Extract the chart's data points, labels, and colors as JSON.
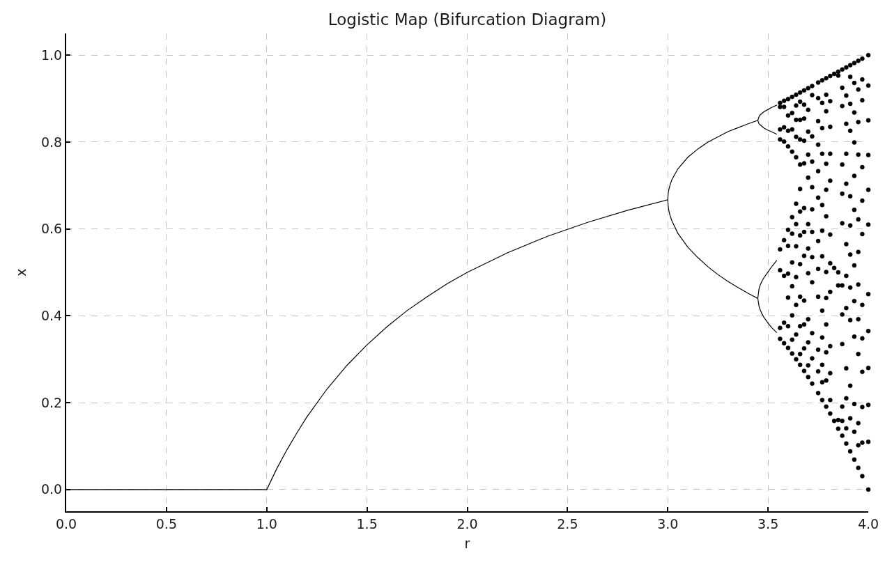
{
  "chart_data": {
    "type": "scatter",
    "title": "Logistic Map (Bifurcation Diagram)",
    "xlabel": "r",
    "ylabel": "x",
    "xlim": [
      0,
      4
    ],
    "ylim": [
      -0.05,
      1.05
    ],
    "xticks": [
      {
        "value": 0,
        "label": "0.0"
      },
      0.5,
      {
        "value": 1,
        "label": "1.0"
      },
      1.5,
      {
        "value": 2,
        "label": "2.0"
      },
      2.5,
      {
        "value": 3,
        "label": "3.0"
      },
      3.5,
      {
        "value": 4,
        "label": "4.0"
      }
    ],
    "yticks": [
      {
        "value": 0,
        "label": "0.0"
      },
      0.2,
      0.4,
      0.6,
      0.8,
      {
        "value": 1,
        "label": "1.0"
      }
    ],
    "grid": true,
    "marker": "circle",
    "line_style": "solid",
    "series": [
      {
        "type": "line",
        "marker": "none",
        "color": "#000000",
        "x": [
          0,
          0.5,
          1.0,
          1.05,
          1.1,
          1.15,
          1.2,
          1.3,
          1.4,
          1.5,
          1.6,
          1.7,
          1.8,
          1.9,
          2.0,
          2.2,
          2.4,
          2.6,
          2.8,
          3.0,
          3.002,
          3.005,
          3.01,
          3.02,
          3.05,
          3.1,
          3.15,
          3.2,
          3.25,
          3.3,
          3.35,
          3.4,
          3.449,
          3.455,
          3.46,
          3.47,
          3.48,
          3.5,
          3.52,
          3.544
        ],
        "values": [
          0,
          0,
          0,
          0.048,
          0.091,
          0.13,
          0.167,
          0.231,
          0.286,
          0.333,
          0.375,
          0.412,
          0.444,
          0.474,
          0.5,
          0.545,
          0.583,
          0.615,
          0.643,
          0.667,
          0.682,
          0.69,
          0.699,
          0.713,
          0.738,
          0.765,
          0.784,
          0.8,
          0.812,
          0.824,
          0.833,
          0.842,
          0.85,
          0.858,
          0.862,
          0.866,
          0.87,
          0.875,
          0.88,
          0.885
        ]
      },
      {
        "type": "line",
        "marker": "none",
        "color": "#000000",
        "x": [
          3.0,
          3.002,
          3.005,
          3.01,
          3.02,
          3.05,
          3.1,
          3.15,
          3.2,
          3.25,
          3.3,
          3.35,
          3.4,
          3.449,
          3.455,
          3.46,
          3.47,
          3.48,
          3.5,
          3.52,
          3.544
        ],
        "values": [
          0.667,
          0.652,
          0.643,
          0.633,
          0.619,
          0.59,
          0.558,
          0.534,
          0.513,
          0.495,
          0.479,
          0.465,
          0.452,
          0.44,
          0.422,
          0.415,
          0.404,
          0.396,
          0.383,
          0.372,
          0.361
        ]
      },
      {
        "type": "line",
        "marker": "none",
        "color": "#000000",
        "x": [
          3.449,
          3.455,
          3.46,
          3.47,
          3.48,
          3.5,
          3.52,
          3.544
        ],
        "values": [
          0.85,
          0.842,
          0.84,
          0.836,
          0.832,
          0.827,
          0.823,
          0.818
        ]
      },
      {
        "type": "line",
        "marker": "none",
        "color": "#000000",
        "x": [
          3.449,
          3.455,
          3.46,
          3.47,
          3.48,
          3.5,
          3.52,
          3.544
        ],
        "values": [
          0.44,
          0.462,
          0.47,
          0.48,
          0.488,
          0.501,
          0.514,
          0.528
        ]
      },
      {
        "color": "#000000",
        "x": [
          3.56,
          3.56,
          3.56,
          3.56,
          3.56,
          3.56,
          3.56,
          3.56,
          3.58,
          3.58,
          3.58,
          3.58,
          3.58,
          3.58,
          3.58,
          3.58,
          3.6,
          3.6,
          3.6,
          3.6,
          3.6,
          3.6,
          3.6,
          3.6,
          3.6,
          3.6,
          3.62,
          3.62,
          3.62,
          3.62,
          3.62,
          3.62,
          3.62,
          3.62,
          3.62,
          3.62,
          3.62,
          3.64,
          3.64,
          3.64,
          3.64,
          3.64,
          3.64,
          3.64,
          3.64,
          3.64,
          3.64,
          3.64,
          3.64,
          3.66,
          3.66,
          3.66,
          3.66,
          3.66,
          3.66,
          3.66,
          3.66,
          3.66,
          3.66,
          3.66,
          3.66,
          3.66
        ],
        "values": [
          0.89,
          0.881,
          0.829,
          0.806,
          0.553,
          0.505,
          0.372,
          0.347,
          0.895,
          0.881,
          0.834,
          0.801,
          0.574,
          0.492,
          0.384,
          0.337,
          0.899,
          0.861,
          0.826,
          0.79,
          0.598,
          0.561,
          0.497,
          0.442,
          0.376,
          0.326,
          0.904,
          0.867,
          0.829,
          0.778,
          0.627,
          0.589,
          0.523,
          0.468,
          0.401,
          0.345,
          0.313,
          0.909,
          0.884,
          0.851,
          0.812,
          0.765,
          0.658,
          0.611,
          0.56,
          0.489,
          0.425,
          0.357,
          0.3,
          0.914,
          0.893,
          0.851,
          0.806,
          0.748,
          0.692,
          0.64,
          0.585,
          0.519,
          0.444,
          0.376,
          0.312,
          0.287
        ]
      },
      {
        "color": "#000000",
        "x": [
          3.68,
          3.68,
          3.68,
          3.68,
          3.68,
          3.68,
          3.68,
          3.68,
          3.68,
          3.68,
          3.68,
          3.68,
          3.7,
          3.7,
          3.7,
          3.7,
          3.7,
          3.7,
          3.7,
          3.7,
          3.7,
          3.7,
          3.7,
          3.7,
          3.72,
          3.72,
          3.72,
          3.72,
          3.72,
          3.72,
          3.72,
          3.72,
          3.72,
          3.72,
          3.72,
          3.72,
          3.75,
          3.75,
          3.75,
          3.75,
          3.75,
          3.75,
          3.75,
          3.75,
          3.75,
          3.75,
          3.75,
          3.75,
          3.77,
          3.77,
          3.77,
          3.77,
          3.77,
          3.77,
          3.77,
          3.77,
          3.77,
          3.77,
          3.77,
          3.77,
          3.79,
          3.79,
          3.79,
          3.79,
          3.79,
          3.79,
          3.79,
          3.79,
          3.79,
          3.79,
          3.79,
          3.79,
          3.81,
          3.81,
          3.81,
          3.81,
          3.81,
          3.81,
          3.81,
          3.81,
          3.81,
          3.81,
          3.81,
          3.81
        ],
        "values": [
          0.919,
          0.886,
          0.854,
          0.803,
          0.751,
          0.648,
          0.593,
          0.538,
          0.435,
          0.38,
          0.325,
          0.273,
          0.924,
          0.874,
          0.824,
          0.771,
          0.718,
          0.611,
          0.555,
          0.498,
          0.392,
          0.339,
          0.286,
          0.259,
          0.929,
          0.908,
          0.813,
          0.755,
          0.696,
          0.645,
          0.593,
          0.535,
          0.477,
          0.36,
          0.302,
          0.244,
          0.937,
          0.901,
          0.848,
          0.794,
          0.733,
          0.672,
          0.572,
          0.508,
          0.444,
          0.322,
          0.272,
          0.222,
          0.942,
          0.89,
          0.832,
          0.773,
          0.655,
          0.596,
          0.537,
          0.412,
          0.35,
          0.287,
          0.247,
          0.206,
          0.947,
          0.909,
          0.871,
          0.75,
          0.69,
          0.629,
          0.501,
          0.441,
          0.38,
          0.316,
          0.251,
          0.191,
          0.952,
          0.894,
          0.835,
          0.773,
          0.711,
          0.587,
          0.521,
          0.455,
          0.33,
          0.268,
          0.206,
          0.175
        ]
      },
      {
        "color": "#000000",
        "x": [
          3.83,
          3.83,
          3.83,
          3.85,
          3.85,
          3.85,
          3.85,
          3.85,
          3.85
        ],
        "values": [
          0.957,
          0.51,
          0.158,
          0.962,
          0.953,
          0.5,
          0.47,
          0.16,
          0.14
        ]
      },
      {
        "color": "#000000",
        "x": [
          3.87,
          3.87,
          3.87,
          3.87,
          3.87,
          3.87,
          3.87,
          3.87,
          3.87,
          3.87,
          3.87,
          3.87,
          3.89,
          3.89,
          3.89,
          3.89,
          3.89,
          3.89,
          3.89,
          3.89,
          3.89,
          3.89,
          3.89,
          3.89,
          3.91,
          3.91,
          3.91,
          3.91,
          3.91,
          3.91,
          3.91,
          3.91,
          3.91,
          3.91,
          3.91,
          3.91,
          3.93,
          3.93,
          3.93,
          3.93,
          3.93,
          3.93,
          3.93,
          3.93,
          3.93,
          3.93,
          3.93,
          3.93,
          3.95,
          3.95,
          3.95,
          3.95,
          3.95,
          3.95,
          3.95,
          3.95,
          3.95,
          3.95,
          3.95,
          3.95,
          3.97,
          3.97,
          3.97,
          3.97,
          3.97,
          3.97,
          3.97,
          3.97,
          3.97,
          3.97,
          3.97,
          3.97,
          4.0,
          4.0,
          4.0,
          4.0,
          4.0,
          4.0,
          4.0,
          4.0,
          4.0,
          4.0,
          4.0,
          4.0
        ],
        "values": [
          0.967,
          0.925,
          0.883,
          0.748,
          0.681,
          0.613,
          0.47,
          0.403,
          0.335,
          0.191,
          0.158,
          0.124,
          0.972,
          0.907,
          0.842,
          0.773,
          0.704,
          0.565,
          0.492,
          0.418,
          0.279,
          0.21,
          0.141,
          0.106,
          0.977,
          0.95,
          0.888,
          0.826,
          0.675,
          0.608,
          0.541,
          0.465,
          0.39,
          0.239,
          0.164,
          0.088,
          0.982,
          0.936,
          0.868,
          0.799,
          0.722,
          0.644,
          0.516,
          0.434,
          0.352,
          0.197,
          0.133,
          0.069,
          0.987,
          0.921,
          0.846,
          0.771,
          0.622,
          0.547,
          0.472,
          0.392,
          0.312,
          0.153,
          0.102,
          0.05,
          0.992,
          0.944,
          0.896,
          0.742,
          0.665,
          0.588,
          0.425,
          0.348,
          0.271,
          0.19,
          0.108,
          0.031,
          1.0,
          0.93,
          0.85,
          0.77,
          0.69,
          0.61,
          0.45,
          0.365,
          0.28,
          0.195,
          0.11,
          0.0
        ]
      }
    ]
  }
}
